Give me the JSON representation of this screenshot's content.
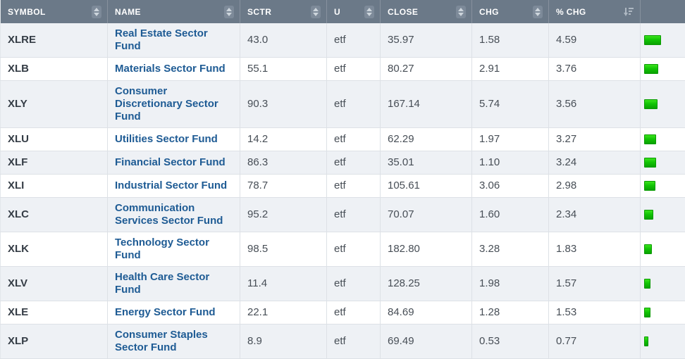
{
  "table": {
    "columns": [
      {
        "key": "symbol",
        "label": "SYMBOL",
        "sort": "toggle"
      },
      {
        "key": "name",
        "label": "NAME",
        "sort": "toggle"
      },
      {
        "key": "sctr",
        "label": "SCTR",
        "sort": "toggle"
      },
      {
        "key": "u",
        "label": "U",
        "sort": "toggle"
      },
      {
        "key": "close",
        "label": "CLOSE",
        "sort": "toggle"
      },
      {
        "key": "chg",
        "label": "CHG",
        "sort": "toggle"
      },
      {
        "key": "pct_chg",
        "label": "% CHG",
        "sort": "desc-active"
      },
      {
        "key": "bar",
        "label": "",
        "sort": "none"
      }
    ],
    "rows": [
      {
        "symbol": "XLRE",
        "name": "Real Estate Sector Fund",
        "sctr": "43.0",
        "u": "etf",
        "close": "35.97",
        "chg": "1.58",
        "pct_chg": "4.59",
        "bar_value": 4.59
      },
      {
        "symbol": "XLB",
        "name": "Materials Sector Fund",
        "sctr": "55.1",
        "u": "etf",
        "close": "80.27",
        "chg": "2.91",
        "pct_chg": "3.76",
        "bar_value": 3.76
      },
      {
        "symbol": "XLY",
        "name": "Consumer Discretionary Sector Fund",
        "sctr": "90.3",
        "u": "etf",
        "close": "167.14",
        "chg": "5.74",
        "pct_chg": "3.56",
        "bar_value": 3.56
      },
      {
        "symbol": "XLU",
        "name": "Utilities Sector Fund",
        "sctr": "14.2",
        "u": "etf",
        "close": "62.29",
        "chg": "1.97",
        "pct_chg": "3.27",
        "bar_value": 3.27
      },
      {
        "symbol": "XLF",
        "name": "Financial Sector Fund",
        "sctr": "86.3",
        "u": "etf",
        "close": "35.01",
        "chg": "1.10",
        "pct_chg": "3.24",
        "bar_value": 3.24
      },
      {
        "symbol": "XLI",
        "name": "Industrial Sector Fund",
        "sctr": "78.7",
        "u": "etf",
        "close": "105.61",
        "chg": "3.06",
        "pct_chg": "2.98",
        "bar_value": 2.98
      },
      {
        "symbol": "XLC",
        "name": "Communication Services Sector Fund",
        "sctr": "95.2",
        "u": "etf",
        "close": "70.07",
        "chg": "1.60",
        "pct_chg": "2.34",
        "bar_value": 2.34
      },
      {
        "symbol": "XLK",
        "name": "Technology Sector Fund",
        "sctr": "98.5",
        "u": "etf",
        "close": "182.80",
        "chg": "3.28",
        "pct_chg": "1.83",
        "bar_value": 1.83
      },
      {
        "symbol": "XLV",
        "name": "Health Care Sector Fund",
        "sctr": "11.4",
        "u": "etf",
        "close": "128.25",
        "chg": "1.98",
        "pct_chg": "1.57",
        "bar_value": 1.57
      },
      {
        "symbol": "XLE",
        "name": "Energy Sector Fund",
        "sctr": "22.1",
        "u": "etf",
        "close": "84.69",
        "chg": "1.28",
        "pct_chg": "1.53",
        "bar_value": 1.53
      },
      {
        "symbol": "XLP",
        "name": "Consumer Staples Sector Fund",
        "sctr": "8.9",
        "u": "etf",
        "close": "69.49",
        "chg": "0.53",
        "pct_chg": "0.77",
        "bar_value": 0.77
      }
    ]
  },
  "colors": {
    "header_bg": "#6b7988",
    "link_blue": "#1e5b94",
    "bar_green": "#12c505",
    "row_stripe": "#eef1f5"
  }
}
